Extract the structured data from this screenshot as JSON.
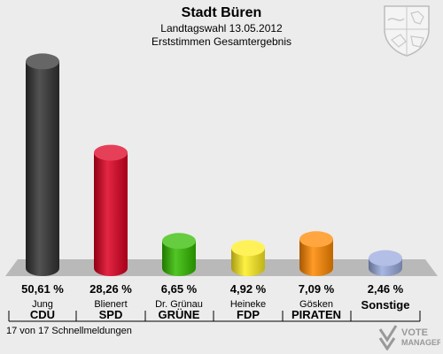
{
  "header": {
    "title": "Stadt Büren",
    "subtitle1": "Landtagswahl 13.05.2012",
    "subtitle2": "Erststimmen Gesamtergebnis"
  },
  "footer": {
    "status": "17 von 17 Schnellmeldungen"
  },
  "logo": {
    "line1": "VOTE",
    "line2": "MANAGER"
  },
  "chart_data": {
    "type": "bar",
    "title": "Stadt Büren",
    "subtitle": "Landtagswahl 13.05.2012 Erststimmen Gesamtergebnis",
    "categories": [
      "CDU",
      "SPD",
      "GRÜNE",
      "FDP",
      "PIRATEN",
      "Sonstige"
    ],
    "candidates": [
      "Jung",
      "Blienert",
      "Dr. Grünau",
      "Heineke",
      "Gösken",
      ""
    ],
    "values": [
      50.61,
      28.26,
      6.65,
      4.92,
      7.09,
      2.46
    ],
    "value_labels": [
      "50,61 %",
      "28,26 %",
      "6,65 %",
      "4,92 %",
      "7,09 %",
      "2,46 %"
    ],
    "colors": [
      "#333333",
      "#dd0022",
      "#33bb00",
      "#ffee22",
      "#ff8800",
      "#99aadd"
    ],
    "ylim": [
      0,
      52
    ]
  }
}
